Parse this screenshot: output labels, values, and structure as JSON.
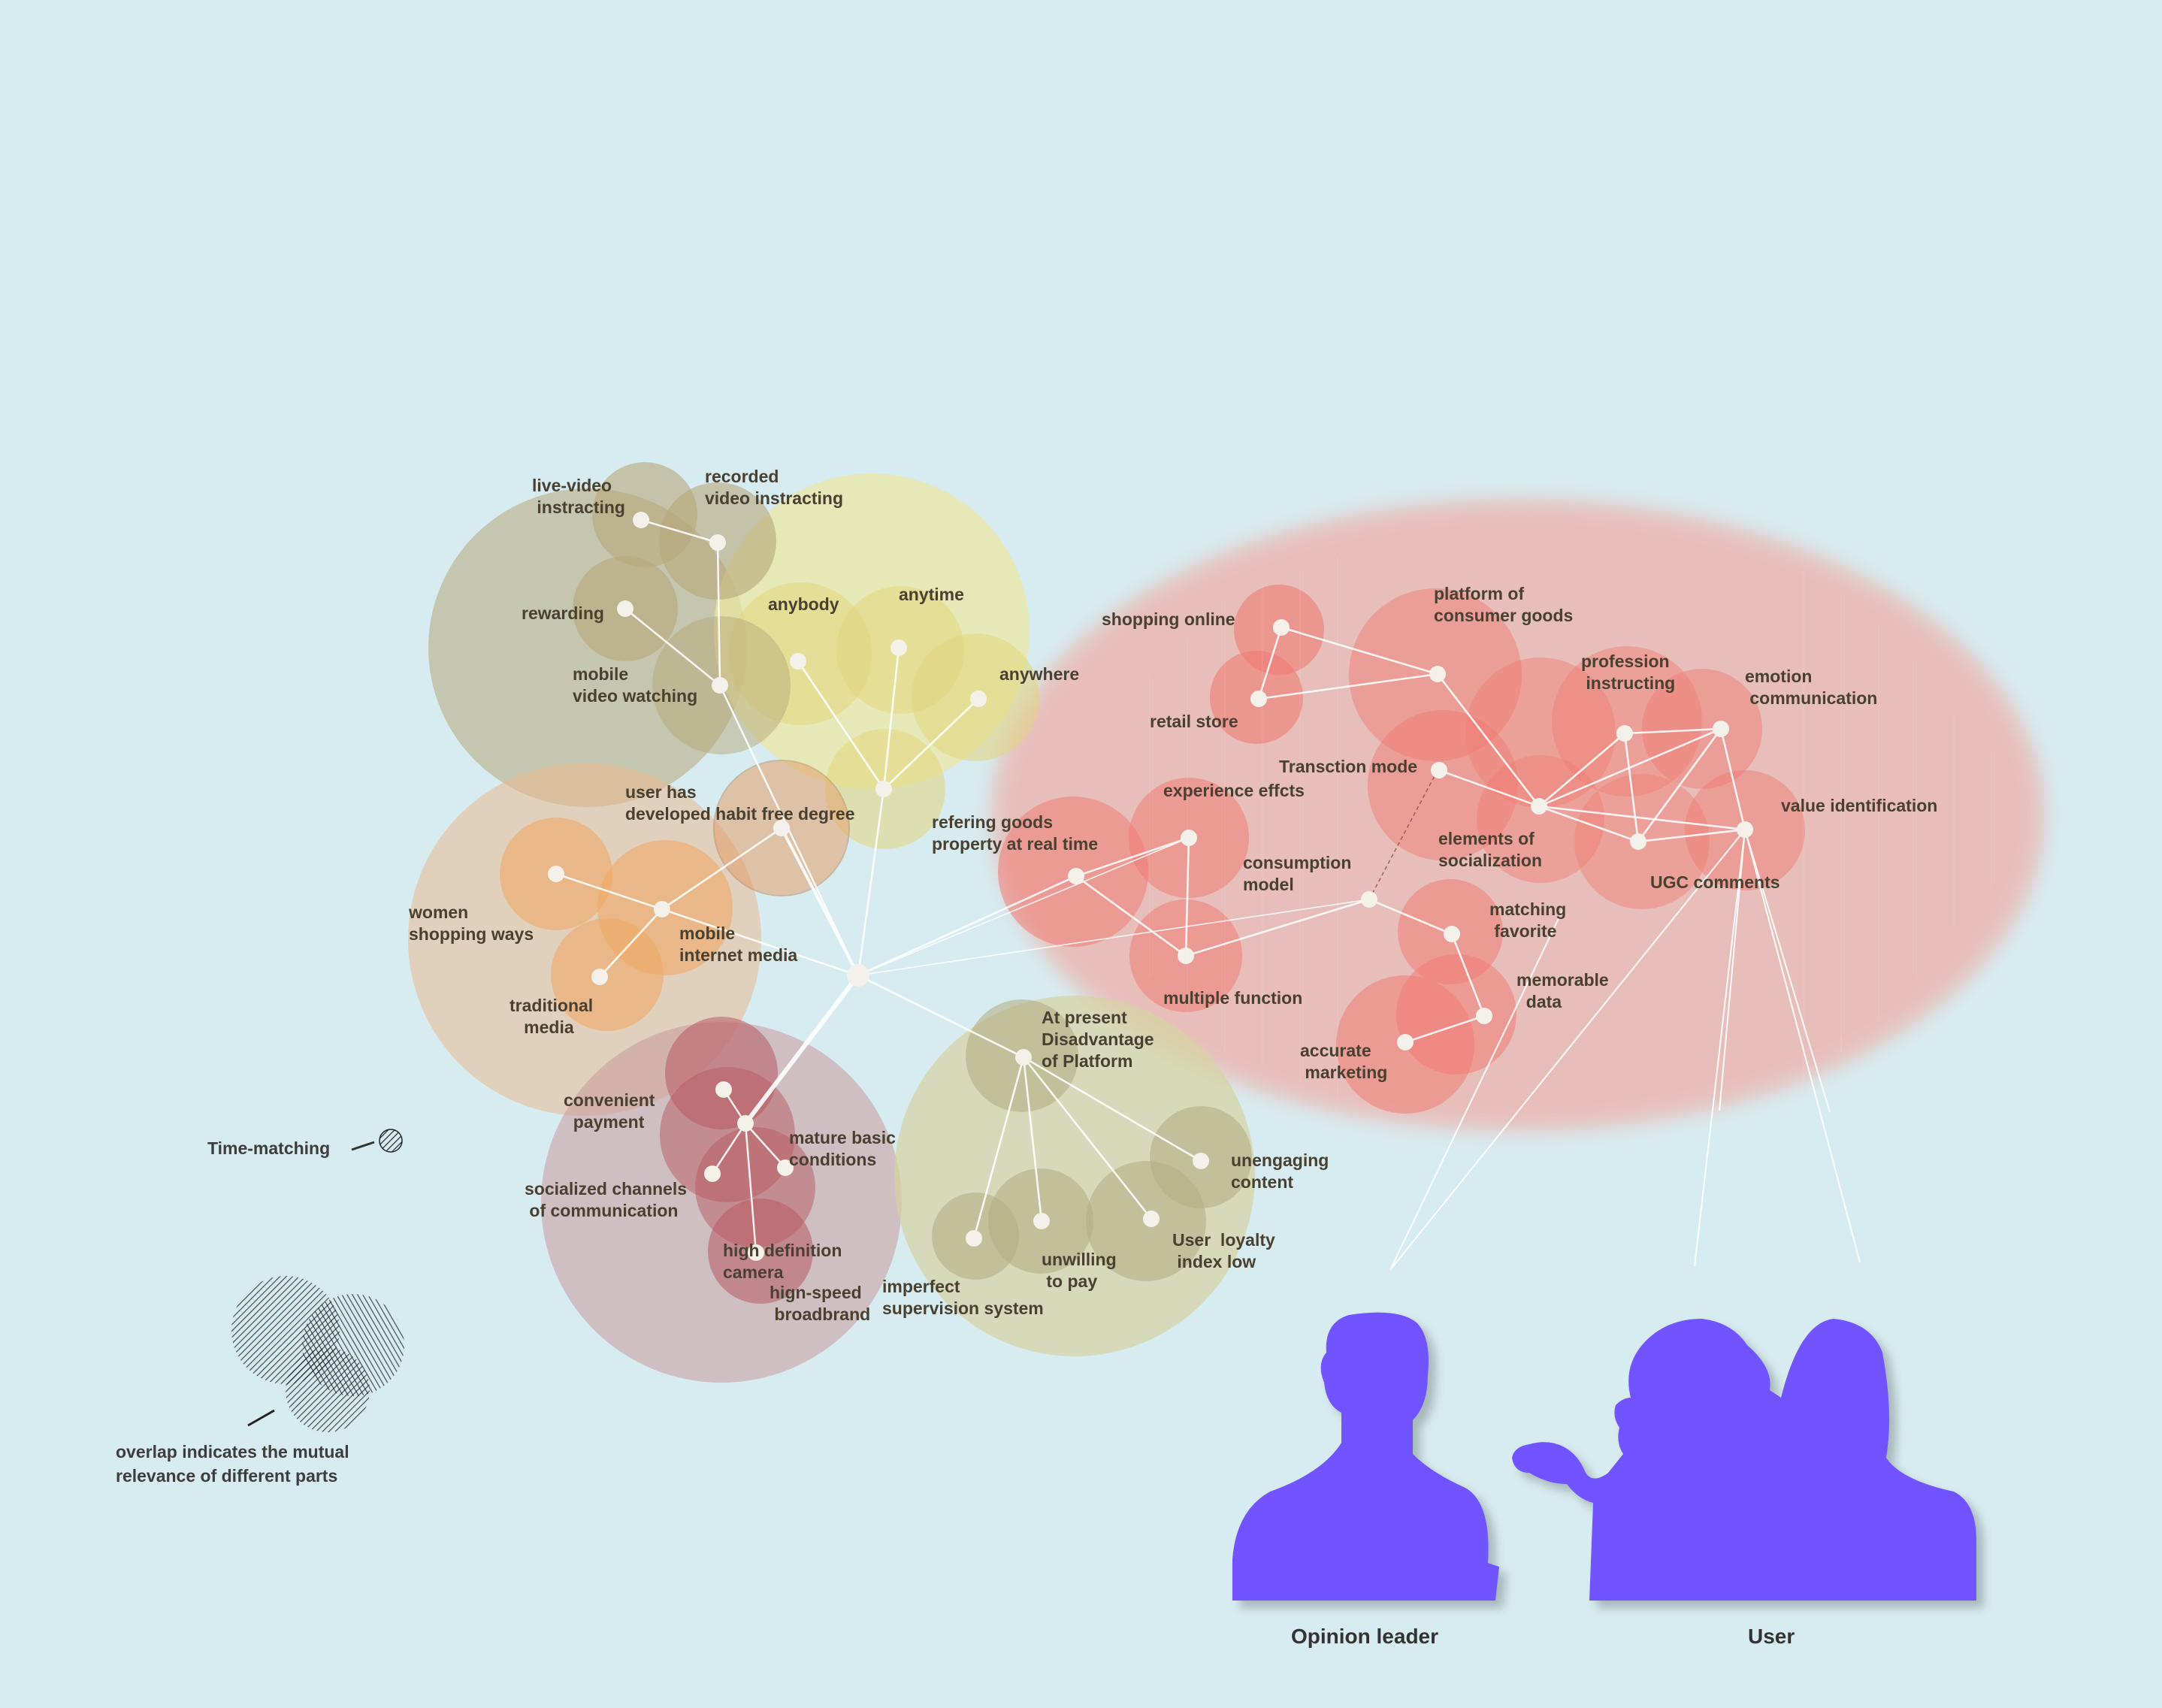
{
  "diagram": {
    "labels": {
      "live_video": "live-video\n instracting",
      "recorded_video": "recorded\nvideo instracting",
      "rewarding": "rewarding",
      "mobile_video": "mobile\nvideo watching",
      "anybody": "anybody",
      "anytime": "anytime",
      "anywhere": "anywhere",
      "user_habit": "user has\ndeveloped habit free degree",
      "refering_goods": "refering goods\nproperty at real time",
      "women_shopping": "women\nshopping ways",
      "mobile_internet": "mobile\ninternet media",
      "traditional_media": "traditional\n   media",
      "convenient_payment": "convenient\n  payment",
      "mature_basic": "mature basic\nconditions",
      "socialized_channels": "socialized channels\n of communication",
      "high_definition": "high definition\ncamera",
      "high_speed": "hign-speed\n broadbrand",
      "imperfect_supervision": "imperfect\nsupervision system",
      "unwilling_to_pay": "unwilling\n to pay",
      "user_loyalty": "User  loyalty\n index low",
      "unengaging_content": "unengaging\ncontent",
      "platform_disadvantage": "At present\nDisadvantage\nof Platform",
      "shopping_online": "shopping online",
      "retail_store": "retail store",
      "platform_consumer": "platform of\nconsumer goods",
      "profession_instructing": "profession\n instructing",
      "emotion_communication": "emotion\n communication",
      "transaction_mode": "Transction mode",
      "experience_effects": "experience effcts",
      "consumption_model": "consumption\nmodel",
      "elements_socialization": "elements of\nsocialization",
      "value_identification": "value identification",
      "ugc_comments": "UGC comments",
      "matching_favorite": "matching\n favorite",
      "memorable_data": "memorable\n  data",
      "multiple_function": "multiple function",
      "accurate_marketing": "accurate\n marketing"
    }
  },
  "legend": {
    "time_matching": "Time-matching",
    "overlap_note": "overlap indicates the mutual\nrelevance of different parts"
  },
  "figures": {
    "opinion_leader": "Opinion leader",
    "user": "User",
    "silhouette_color": "#7152ff"
  },
  "colors": {
    "background": "#d7ecf0",
    "olive": "#b7a77a",
    "yellow": "#e6df93",
    "orange": "#f0a866",
    "dark_red": "#b85a60",
    "khaki": "#c7c48d",
    "salmon": "#f07c74"
  }
}
